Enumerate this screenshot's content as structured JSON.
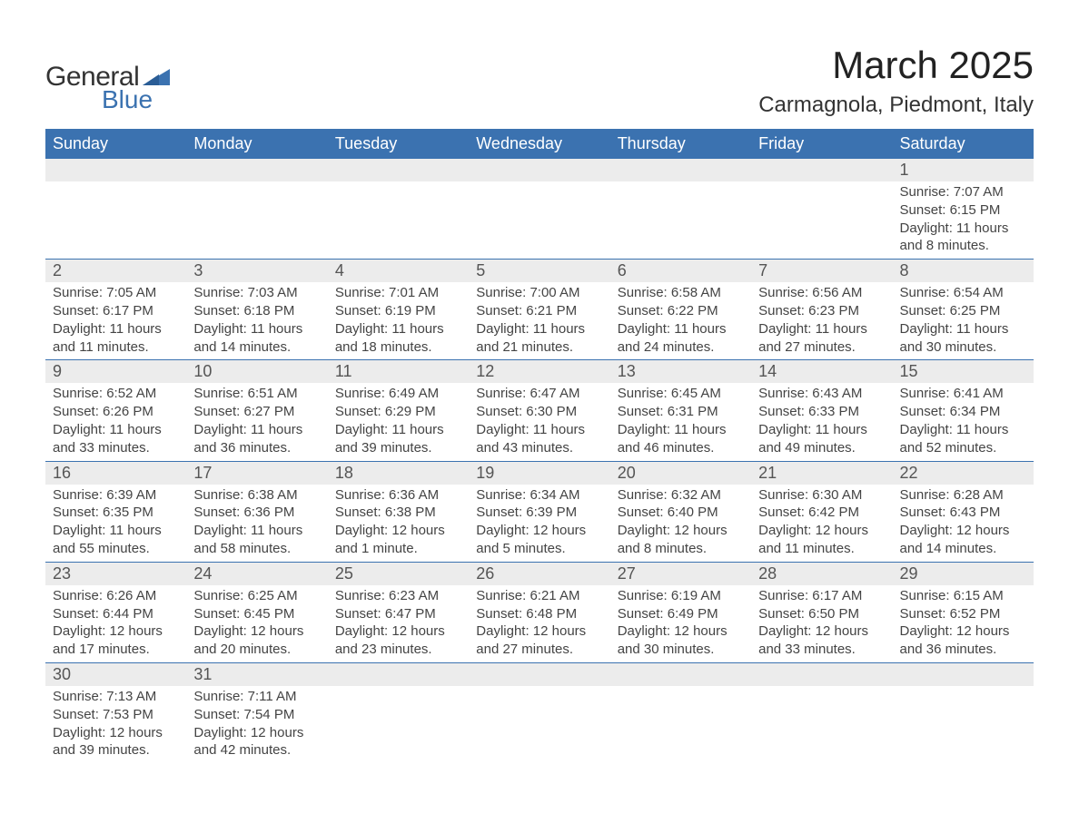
{
  "logo": {
    "general": "General",
    "blue": "Blue"
  },
  "title": "March 2025",
  "location": "Carmagnola, Piedmont, Italy",
  "colors": {
    "header_bg": "#3b72b0",
    "header_fg": "#ffffff",
    "daynum_bg": "#ececec",
    "row_border": "#3b72b0",
    "text": "#333333",
    "logo_blue": "#3b72b0"
  },
  "days_of_week": [
    "Sunday",
    "Monday",
    "Tuesday",
    "Wednesday",
    "Thursday",
    "Friday",
    "Saturday"
  ],
  "weeks": [
    [
      null,
      null,
      null,
      null,
      null,
      null,
      {
        "d": "1",
        "sr": "7:07 AM",
        "ss": "6:15 PM",
        "dl": "11 hours and 8 minutes."
      }
    ],
    [
      {
        "d": "2",
        "sr": "7:05 AM",
        "ss": "6:17 PM",
        "dl": "11 hours and 11 minutes."
      },
      {
        "d": "3",
        "sr": "7:03 AM",
        "ss": "6:18 PM",
        "dl": "11 hours and 14 minutes."
      },
      {
        "d": "4",
        "sr": "7:01 AM",
        "ss": "6:19 PM",
        "dl": "11 hours and 18 minutes."
      },
      {
        "d": "5",
        "sr": "7:00 AM",
        "ss": "6:21 PM",
        "dl": "11 hours and 21 minutes."
      },
      {
        "d": "6",
        "sr": "6:58 AM",
        "ss": "6:22 PM",
        "dl": "11 hours and 24 minutes."
      },
      {
        "d": "7",
        "sr": "6:56 AM",
        "ss": "6:23 PM",
        "dl": "11 hours and 27 minutes."
      },
      {
        "d": "8",
        "sr": "6:54 AM",
        "ss": "6:25 PM",
        "dl": "11 hours and 30 minutes."
      }
    ],
    [
      {
        "d": "9",
        "sr": "6:52 AM",
        "ss": "6:26 PM",
        "dl": "11 hours and 33 minutes."
      },
      {
        "d": "10",
        "sr": "6:51 AM",
        "ss": "6:27 PM",
        "dl": "11 hours and 36 minutes."
      },
      {
        "d": "11",
        "sr": "6:49 AM",
        "ss": "6:29 PM",
        "dl": "11 hours and 39 minutes."
      },
      {
        "d": "12",
        "sr": "6:47 AM",
        "ss": "6:30 PM",
        "dl": "11 hours and 43 minutes."
      },
      {
        "d": "13",
        "sr": "6:45 AM",
        "ss": "6:31 PM",
        "dl": "11 hours and 46 minutes."
      },
      {
        "d": "14",
        "sr": "6:43 AM",
        "ss": "6:33 PM",
        "dl": "11 hours and 49 minutes."
      },
      {
        "d": "15",
        "sr": "6:41 AM",
        "ss": "6:34 PM",
        "dl": "11 hours and 52 minutes."
      }
    ],
    [
      {
        "d": "16",
        "sr": "6:39 AM",
        "ss": "6:35 PM",
        "dl": "11 hours and 55 minutes."
      },
      {
        "d": "17",
        "sr": "6:38 AM",
        "ss": "6:36 PM",
        "dl": "11 hours and 58 minutes."
      },
      {
        "d": "18",
        "sr": "6:36 AM",
        "ss": "6:38 PM",
        "dl": "12 hours and 1 minute."
      },
      {
        "d": "19",
        "sr": "6:34 AM",
        "ss": "6:39 PM",
        "dl": "12 hours and 5 minutes."
      },
      {
        "d": "20",
        "sr": "6:32 AM",
        "ss": "6:40 PM",
        "dl": "12 hours and 8 minutes."
      },
      {
        "d": "21",
        "sr": "6:30 AM",
        "ss": "6:42 PM",
        "dl": "12 hours and 11 minutes."
      },
      {
        "d": "22",
        "sr": "6:28 AM",
        "ss": "6:43 PM",
        "dl": "12 hours and 14 minutes."
      }
    ],
    [
      {
        "d": "23",
        "sr": "6:26 AM",
        "ss": "6:44 PM",
        "dl": "12 hours and 17 minutes."
      },
      {
        "d": "24",
        "sr": "6:25 AM",
        "ss": "6:45 PM",
        "dl": "12 hours and 20 minutes."
      },
      {
        "d": "25",
        "sr": "6:23 AM",
        "ss": "6:47 PM",
        "dl": "12 hours and 23 minutes."
      },
      {
        "d": "26",
        "sr": "6:21 AM",
        "ss": "6:48 PM",
        "dl": "12 hours and 27 minutes."
      },
      {
        "d": "27",
        "sr": "6:19 AM",
        "ss": "6:49 PM",
        "dl": "12 hours and 30 minutes."
      },
      {
        "d": "28",
        "sr": "6:17 AM",
        "ss": "6:50 PM",
        "dl": "12 hours and 33 minutes."
      },
      {
        "d": "29",
        "sr": "6:15 AM",
        "ss": "6:52 PM",
        "dl": "12 hours and 36 minutes."
      }
    ],
    [
      {
        "d": "30",
        "sr": "7:13 AM",
        "ss": "7:53 PM",
        "dl": "12 hours and 39 minutes."
      },
      {
        "d": "31",
        "sr": "7:11 AM",
        "ss": "7:54 PM",
        "dl": "12 hours and 42 minutes."
      },
      null,
      null,
      null,
      null,
      null
    ]
  ],
  "labels": {
    "sunrise": "Sunrise: ",
    "sunset": "Sunset: ",
    "daylight": "Daylight: "
  }
}
